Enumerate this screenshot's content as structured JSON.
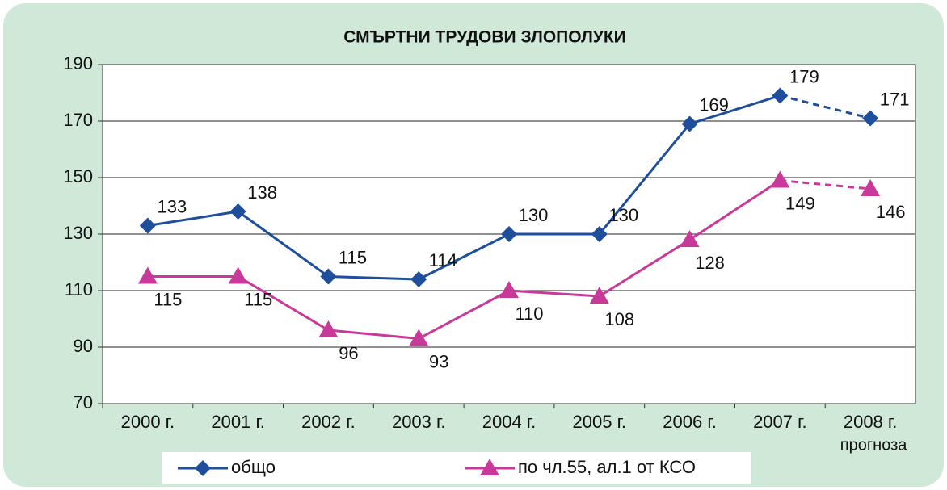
{
  "chart_data": {
    "type": "line",
    "title": "СМЪРТНИ ТРУДОВИ ЗЛОПОЛУКИ",
    "categories": [
      "2000 г.",
      "2001 г.",
      "2002 г.",
      "2003 г.",
      "2004 г.",
      "2005 г.",
      "2006 г.",
      "2007 г.",
      "2008 г."
    ],
    "forecast_label": "прогноза",
    "dashed_from_index": 7,
    "series": [
      {
        "name": "общо",
        "color": "#1f4e9c",
        "marker": "diamond",
        "values": [
          133,
          138,
          115,
          114,
          130,
          130,
          169,
          179,
          171
        ]
      },
      {
        "name": "по чл.55, ал.1 от КСО",
        "color": "#c8399a",
        "marker": "triangle",
        "values": [
          115,
          115,
          96,
          93,
          110,
          108,
          128,
          149,
          146
        ]
      }
    ],
    "ylim": [
      70,
      190
    ],
    "yticks": [
      70,
      90,
      110,
      130,
      150,
      170,
      190
    ],
    "grid": true
  }
}
